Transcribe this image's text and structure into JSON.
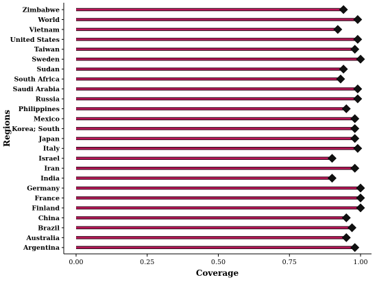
{
  "chart_data": {
    "type": "lollipop",
    "orientation": "horizontal",
    "title": "",
    "xlabel": "Coverage",
    "ylabel": "Regions",
    "xlim": [
      0,
      1.02
    ],
    "x_ticks": [
      0.0,
      0.25,
      0.5,
      0.75,
      1.0
    ],
    "x_tick_labels": [
      "0.00",
      "0.25",
      "0.50",
      "0.75",
      "1.00"
    ],
    "grid": false,
    "legend": "none",
    "marker": "diamond",
    "colors": {
      "stem_outer": "#3a0f22",
      "stem_inner": "#c2185b",
      "marker": "#111111"
    },
    "categories": [
      "Zimbabwe",
      "World",
      "Vietnam",
      "United States",
      "Taiwan",
      "Sweden",
      "Sudan",
      "South Africa",
      "Saudi Arabia",
      "Russia",
      "Philippines",
      "Mexico",
      "Korea; South",
      "Japan",
      "Italy",
      "Israel",
      "Iran",
      "India",
      "Germany",
      "France",
      "Finland",
      "China",
      "Brazil",
      "Australia",
      "Argentina"
    ],
    "values": [
      0.94,
      0.99,
      0.92,
      0.99,
      0.98,
      1.0,
      0.94,
      0.93,
      0.99,
      0.99,
      0.95,
      0.98,
      0.98,
      0.98,
      0.99,
      0.9,
      0.98,
      0.9,
      1.0,
      1.0,
      1.0,
      0.95,
      0.97,
      0.95,
      0.98
    ]
  }
}
